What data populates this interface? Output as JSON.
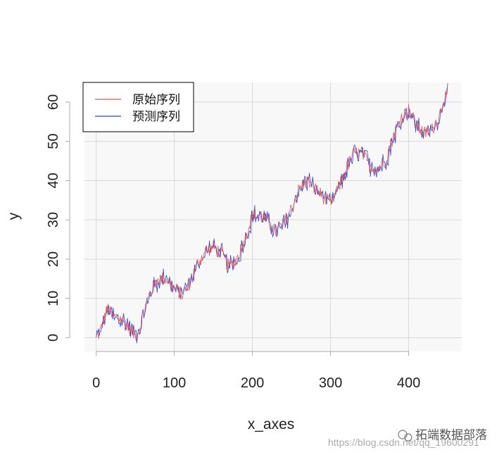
{
  "chart_data": {
    "type": "line",
    "xlabel": "x_axes",
    "ylabel": "y",
    "xlim": [
      -15,
      468
    ],
    "ylim": [
      -3.5,
      65
    ],
    "x_ticks": [
      0,
      100,
      200,
      300,
      400
    ],
    "y_ticks": [
      0,
      10,
      20,
      30,
      40,
      50,
      60
    ],
    "grid": true,
    "legend_position": "top-left",
    "n_points": 451,
    "anchors": [
      [
        0,
        0
      ],
      [
        5,
        1.5
      ],
      [
        10,
        5
      ],
      [
        15,
        7.5
      ],
      [
        20,
        5.5
      ],
      [
        30,
        5
      ],
      [
        40,
        3
      ],
      [
        50,
        0.5
      ],
      [
        55,
        2
      ],
      [
        60,
        6
      ],
      [
        70,
        12
      ],
      [
        80,
        15
      ],
      [
        90,
        15
      ],
      [
        100,
        12.5
      ],
      [
        110,
        11
      ],
      [
        120,
        14
      ],
      [
        130,
        19
      ],
      [
        140,
        22
      ],
      [
        150,
        23
      ],
      [
        160,
        21.5
      ],
      [
        170,
        18
      ],
      [
        180,
        20
      ],
      [
        190,
        25
      ],
      [
        200,
        31
      ],
      [
        210,
        31
      ],
      [
        220,
        29.5
      ],
      [
        230,
        27
      ],
      [
        240,
        29
      ],
      [
        250,
        33
      ],
      [
        260,
        38
      ],
      [
        270,
        40
      ],
      [
        280,
        38
      ],
      [
        290,
        36
      ],
      [
        300,
        34
      ],
      [
        310,
        38
      ],
      [
        320,
        43
      ],
      [
        330,
        47
      ],
      [
        340,
        47
      ],
      [
        350,
        44
      ],
      [
        360,
        43
      ],
      [
        370,
        45
      ],
      [
        380,
        51
      ],
      [
        390,
        56
      ],
      [
        400,
        58
      ],
      [
        410,
        54
      ],
      [
        420,
        52
      ],
      [
        430,
        53
      ],
      [
        440,
        57
      ],
      [
        445,
        61
      ],
      [
        450,
        62
      ]
    ],
    "series": [
      {
        "name": "原始序列",
        "color": "#e05555"
      },
      {
        "name": "预测序列",
        "color": "#3344cc"
      }
    ]
  },
  "legend": {
    "items": [
      {
        "label": "原始序列",
        "color": "#e05555"
      },
      {
        "label": "预测序列",
        "color": "#3344cc"
      }
    ]
  },
  "watermark": {
    "brand": "拓端数据部落",
    "url": "https://blog.csdn.net/qq_19600291"
  }
}
